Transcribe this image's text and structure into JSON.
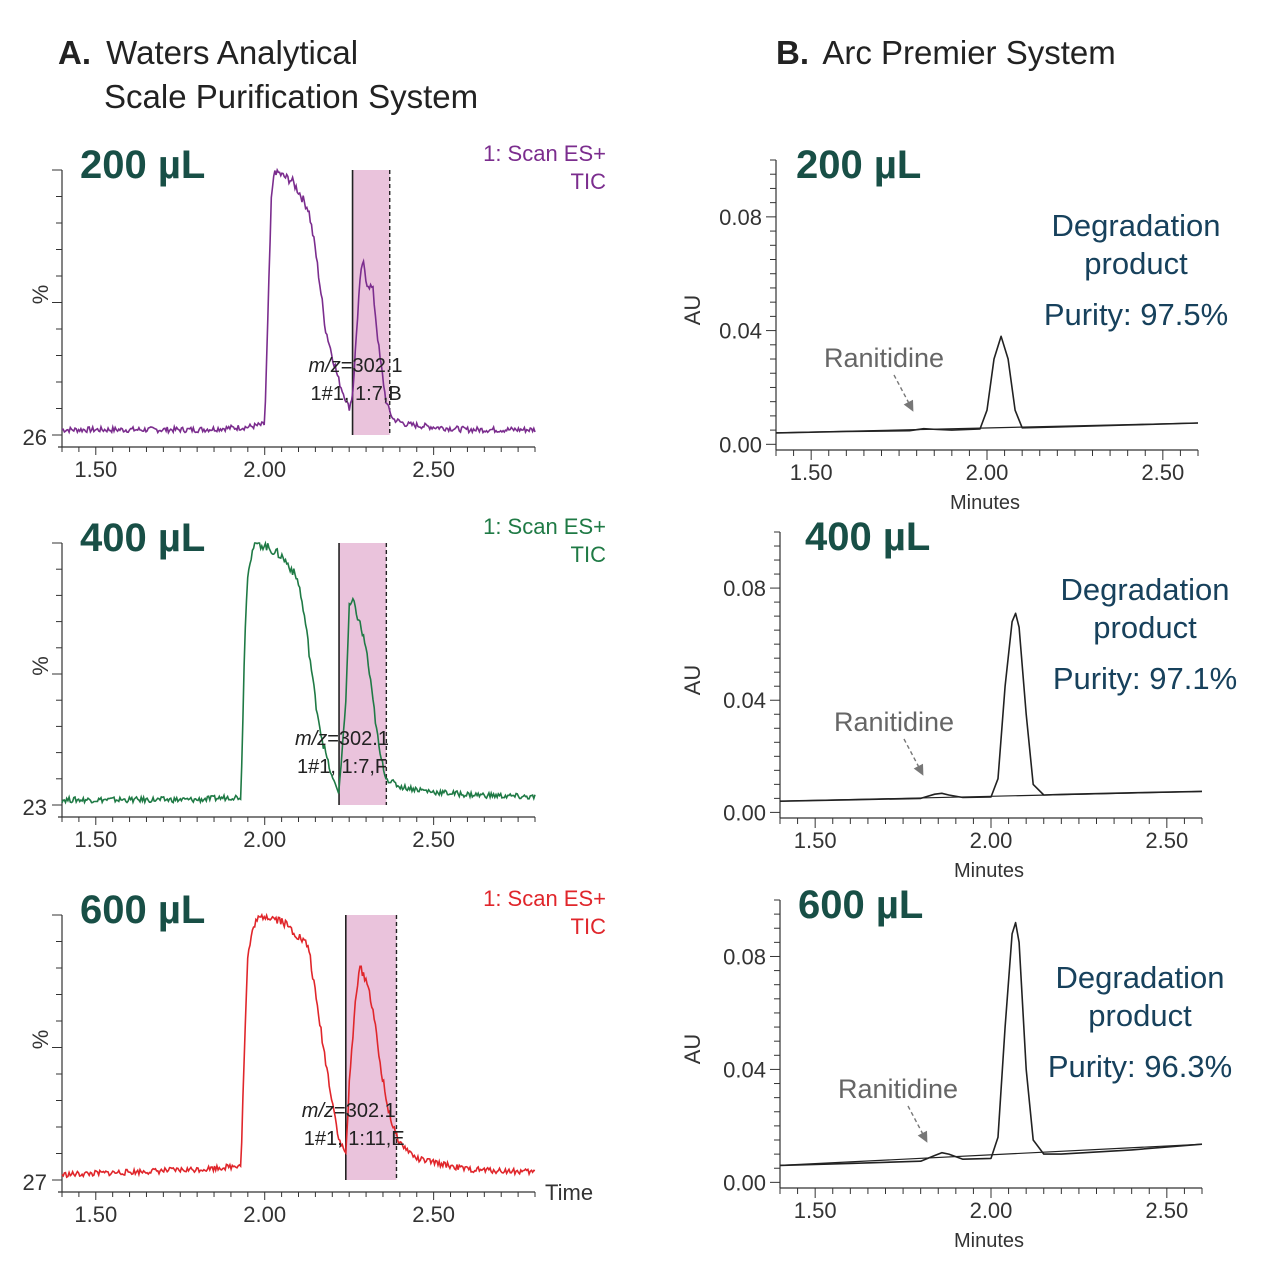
{
  "panel_a": {
    "letter": "A.",
    "title_line1": "Waters Analytical",
    "title_line2": "Scale Purification System"
  },
  "panel_b": {
    "letter": "B.",
    "title": "Arc Premier System"
  },
  "time_label": "Time",
  "chart_data": [
    {
      "type": "line",
      "panel": "A",
      "volume_label": "200 µL",
      "trace_label": [
        "1: Scan ES+",
        "TIC"
      ],
      "ylabel": "%",
      "ymin_label": "26",
      "color": "#7b2d8e",
      "xlim": [
        1.4,
        2.8
      ],
      "ylim": [
        0,
        100
      ],
      "xticks": [
        "1.50",
        "2.00",
        "2.50"
      ],
      "fraction_window": [
        2.26,
        2.37
      ],
      "annotation": {
        "mz_prefix": "m/z",
        "mz_value": "=302.1",
        "line2": "1#1, 1:7,B"
      },
      "series": [
        {
          "x": [
            1.4,
            1.6,
            1.8,
            1.95,
            2.0,
            2.02,
            2.03,
            2.05,
            2.08,
            2.1,
            2.13,
            2.15,
            2.18,
            2.2,
            2.22,
            2.25,
            2.26,
            2.28,
            2.29,
            2.3,
            2.32,
            2.34,
            2.36,
            2.38,
            2.42,
            2.5,
            2.6,
            2.8
          ],
          "y": [
            2,
            2,
            2,
            3,
            4,
            90,
            100,
            98,
            96,
            92,
            85,
            70,
            40,
            30,
            20,
            10,
            15,
            55,
            66,
            58,
            55,
            30,
            12,
            6,
            4,
            3,
            2,
            2
          ]
        }
      ]
    },
    {
      "type": "line",
      "panel": "A",
      "volume_label": "400 µL",
      "trace_label": [
        "1: Scan ES+",
        "TIC"
      ],
      "ylabel": "%",
      "ymin_label": "23",
      "color": "#1f7a45",
      "xlim": [
        1.4,
        2.8
      ],
      "ylim": [
        0,
        100
      ],
      "xticks": [
        "1.50",
        "2.00",
        "2.50"
      ],
      "fraction_window": [
        2.22,
        2.36
      ],
      "annotation": {
        "mz_prefix": "m/z",
        "mz_value": "=302.1",
        "line2": "1#1, 1:7,F"
      },
      "series": [
        {
          "x": [
            1.4,
            1.6,
            1.8,
            1.9,
            1.93,
            1.94,
            1.95,
            1.97,
            2.0,
            2.05,
            2.08,
            2.1,
            2.12,
            2.15,
            2.17,
            2.2,
            2.22,
            2.24,
            2.25,
            2.26,
            2.28,
            2.3,
            2.32,
            2.34,
            2.36,
            2.4,
            2.5,
            2.6,
            2.8
          ],
          "y": [
            2,
            2,
            2,
            3,
            3,
            60,
            90,
            100,
            99,
            95,
            90,
            85,
            70,
            40,
            25,
            10,
            5,
            40,
            75,
            78,
            70,
            60,
            40,
            20,
            10,
            7,
            5,
            4,
            3
          ]
        }
      ]
    },
    {
      "type": "line",
      "panel": "A",
      "volume_label": "600 µL",
      "trace_label": [
        "1: Scan ES+",
        "TIC"
      ],
      "ylabel": "%",
      "ymin_label": "27",
      "color": "#e0262b",
      "xlim": [
        1.4,
        2.8
      ],
      "ylim": [
        0,
        100
      ],
      "xticks": [
        "1.50",
        "2.00",
        "2.50"
      ],
      "fraction_window": [
        2.24,
        2.39
      ],
      "annotation": {
        "mz_prefix": "m/z",
        "mz_value": "=302.1",
        "line2": "1#1, 1:11,E"
      },
      "series": [
        {
          "x": [
            1.4,
            1.6,
            1.8,
            1.9,
            1.93,
            1.94,
            1.95,
            1.97,
            2.0,
            2.05,
            2.1,
            2.13,
            2.15,
            2.18,
            2.2,
            2.22,
            2.24,
            2.25,
            2.27,
            2.28,
            2.3,
            2.32,
            2.34,
            2.36,
            2.38,
            2.4,
            2.45,
            2.6,
            2.8
          ],
          "y": [
            2,
            3,
            4,
            5,
            6,
            50,
            85,
            97,
            100,
            98,
            92,
            88,
            70,
            45,
            30,
            15,
            10,
            35,
            70,
            80,
            76,
            65,
            45,
            30,
            20,
            14,
            8,
            4,
            3
          ]
        }
      ]
    },
    {
      "type": "line",
      "panel": "B",
      "volume_label": "200 µL",
      "xlabel": "Minutes",
      "ylabel": "AU",
      "xlim": [
        1.4,
        2.6
      ],
      "ylim": [
        -0.002,
        0.1
      ],
      "xticks": [
        "1.50",
        "2.00",
        "2.50"
      ],
      "yticks": [
        "0.00",
        "0.04",
        "0.08"
      ],
      "annotation": {
        "peak_name": "Degradation",
        "peak_name2": "product",
        "purity": "Purity: 97.5%",
        "minor_peak": "Ranitidine"
      },
      "series": [
        {
          "x": [
            1.4,
            1.6,
            1.78,
            1.82,
            1.86,
            1.9,
            1.98,
            2.0,
            2.02,
            2.04,
            2.06,
            2.08,
            2.1,
            2.2,
            2.4,
            2.6
          ],
          "y": [
            0.004,
            0.0045,
            0.0048,
            0.0055,
            0.0052,
            0.005,
            0.0054,
            0.012,
            0.03,
            0.038,
            0.03,
            0.012,
            0.0058,
            0.0061,
            0.0068,
            0.0075
          ]
        },
        {
          "x": [
            1.4,
            2.6
          ],
          "y": [
            0.004,
            0.0075
          ]
        }
      ]
    },
    {
      "type": "line",
      "panel": "B",
      "volume_label": "400 µL",
      "xlabel": "Minutes",
      "ylabel": "AU",
      "xlim": [
        1.4,
        2.6
      ],
      "ylim": [
        -0.002,
        0.1
      ],
      "xticks": [
        "1.50",
        "2.00",
        "2.50"
      ],
      "yticks": [
        "0.00",
        "0.04",
        "0.08"
      ],
      "annotation": {
        "peak_name": "Degradation",
        "peak_name2": "product",
        "purity": "Purity: 97.1%",
        "minor_peak": "Ranitidine"
      },
      "series": [
        {
          "x": [
            1.4,
            1.6,
            1.8,
            1.84,
            1.86,
            1.88,
            1.92,
            2.0,
            2.02,
            2.04,
            2.06,
            2.07,
            2.08,
            2.1,
            2.12,
            2.15,
            2.2,
            2.4,
            2.6
          ],
          "y": [
            0.004,
            0.0045,
            0.005,
            0.0065,
            0.0068,
            0.0062,
            0.0053,
            0.0055,
            0.012,
            0.045,
            0.068,
            0.071,
            0.066,
            0.035,
            0.01,
            0.0062,
            0.0064,
            0.007,
            0.0075
          ]
        },
        {
          "x": [
            1.4,
            2.6
          ],
          "y": [
            0.004,
            0.0075
          ]
        }
      ]
    },
    {
      "type": "line",
      "panel": "B",
      "volume_label": "600 µL",
      "xlabel": "Minutes",
      "ylabel": "AU",
      "xlim": [
        1.4,
        2.6
      ],
      "ylim": [
        -0.002,
        0.1
      ],
      "xticks": [
        "1.50",
        "2.00",
        "2.50"
      ],
      "yticks": [
        "0.00",
        "0.04",
        "0.08"
      ],
      "annotation": {
        "peak_name": "Degradation",
        "peak_name2": "product",
        "purity": "Purity: 96.3%",
        "minor_peak": "Ranitidine"
      },
      "series": [
        {
          "x": [
            1.4,
            1.6,
            1.8,
            1.84,
            1.86,
            1.88,
            1.92,
            2.0,
            2.02,
            2.04,
            2.06,
            2.07,
            2.08,
            2.1,
            2.12,
            2.15,
            2.2,
            2.4,
            2.6
          ],
          "y": [
            0.006,
            0.0067,
            0.0075,
            0.0095,
            0.0105,
            0.01,
            0.0082,
            0.0085,
            0.016,
            0.055,
            0.088,
            0.092,
            0.085,
            0.04,
            0.015,
            0.01,
            0.01,
            0.0115,
            0.0135
          ]
        },
        {
          "x": [
            1.4,
            2.6
          ],
          "y": [
            0.006,
            0.0135
          ]
        }
      ]
    }
  ]
}
